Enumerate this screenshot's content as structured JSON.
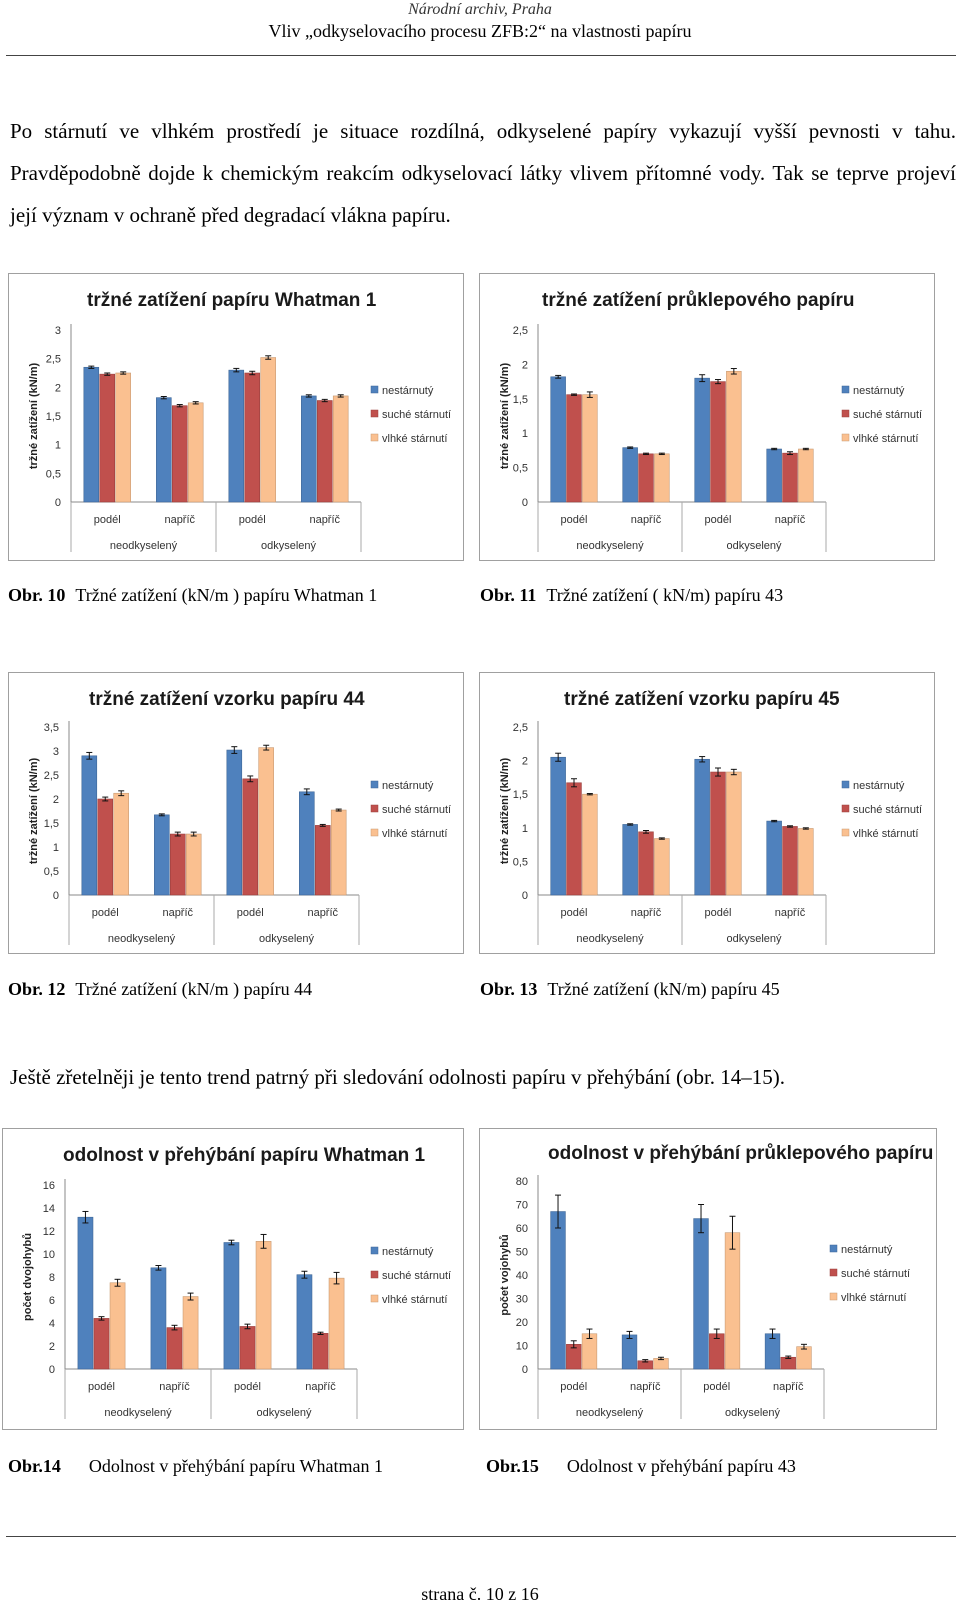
{
  "header": {
    "line1": "Národní archiv, Praha",
    "line2": "Vliv „odkyselovacího procesu ZFB:2“ na vlastnosti papíru"
  },
  "paragraph1": "Po stárnutí ve vlhkém prostředí je situace rozdílná, odkyselené papíry vykazují vyšší pevnosti v tahu. Pravděpodobně dojde k chemickým reakcím odkyselovací látky vlivem přítomné vody. Tak se teprve projeví její význam v ochraně před degradací vlákna papíru.",
  "paragraph2": "Ještě zřetelněji je tento trend patrný při sledování odolnosti papíru v přehýbání (obr. 14–15).",
  "captions": [
    {
      "num": "Obr. 10",
      "text": "Tržné zatížení (kN/m ) papíru Whatman 1"
    },
    {
      "num": "Obr. 11",
      "text": "Tržné zatížení ( kN/m) papíru 43"
    },
    {
      "num": "Obr. 12",
      "text": "Tržné zatížení (kN/m ) papíru 44"
    },
    {
      "num": "Obr. 13",
      "text": "Tržné zatížení (kN/m) papíru 45"
    },
    {
      "num": "Obr.14",
      "text": "Odolnost v přehýbání papíru Whatman 1"
    },
    {
      "num": "Obr.15",
      "text": "Odolnost v přehýbání papíru 43"
    }
  ],
  "footer": "strana č. 10 z 16",
  "colors": {
    "nestarnuty": "#4f81bd",
    "suche": "#c0504d",
    "vlhke": "#fac090"
  },
  "chart_data": [
    {
      "type": "bar",
      "title": "tržné zatížení papíru Whatman 1",
      "ylabel": "tržné zatížení (kN/m)",
      "ylim": [
        0,
        3
      ],
      "yticks": [
        "0",
        "0,5",
        "1",
        "1,5",
        "2",
        "2,5",
        "3"
      ],
      "ystep": 0.5,
      "categories": [
        "podél",
        "napříč",
        "podél",
        "napříč"
      ],
      "groups": [
        "neodkyselený",
        "odkyselený"
      ],
      "series": [
        {
          "name": "nestárnutý",
          "values": [
            2.35,
            1.82,
            2.3,
            1.85
          ],
          "errors": [
            0.02,
            0.02,
            0.03,
            0.02
          ]
        },
        {
          "name": "suché stárnutí",
          "values": [
            2.23,
            1.68,
            2.25,
            1.77
          ],
          "errors": [
            0.02,
            0.02,
            0.03,
            0.02
          ]
        },
        {
          "name": "vlhké stárnutí",
          "values": [
            2.25,
            1.73,
            2.52,
            1.85
          ],
          "errors": [
            0.02,
            0.02,
            0.03,
            0.02
          ]
        }
      ],
      "legend": "right"
    },
    {
      "type": "bar",
      "title": "tržné zatížení průklepového papíru",
      "ylabel": "tržné zatížení (kN/m)",
      "ylim": [
        0,
        2.5
      ],
      "yticks": [
        "0",
        "0,5",
        "1",
        "1,5",
        "2",
        "2,5"
      ],
      "ystep": 0.5,
      "categories": [
        "podél",
        "napříč",
        "podél",
        "napříč"
      ],
      "groups": [
        "neodkyselený",
        "odkyselený"
      ],
      "series": [
        {
          "name": "nestárnutý",
          "values": [
            1.82,
            0.79,
            1.8,
            0.77
          ],
          "errors": [
            0.02,
            0.01,
            0.05,
            0.01
          ]
        },
        {
          "name": "suché stárnutí",
          "values": [
            1.56,
            0.7,
            1.75,
            0.71
          ],
          "errors": [
            0.01,
            0.01,
            0.03,
            0.02
          ]
        },
        {
          "name": "vlhké stárnutí",
          "values": [
            1.56,
            0.7,
            1.9,
            0.77
          ],
          "errors": [
            0.04,
            0.01,
            0.04,
            0.01
          ]
        }
      ],
      "legend": "right"
    },
    {
      "type": "bar",
      "title": "tržné zatížení vzorku papíru  44",
      "ylabel": "tržné zatížení (kN/m)",
      "ylim": [
        0,
        3.5
      ],
      "yticks": [
        "0",
        "0,5",
        "1",
        "1,5",
        "2",
        "2,5",
        "3",
        "3,5"
      ],
      "ystep": 0.5,
      "categories": [
        "podél",
        "napříč",
        "podél",
        "napříč"
      ],
      "groups": [
        "neodkyselený",
        "odkyselený"
      ],
      "series": [
        {
          "name": "nestárnutý",
          "values": [
            2.9,
            1.67,
            3.02,
            2.15
          ],
          "errors": [
            0.07,
            0.02,
            0.07,
            0.06
          ]
        },
        {
          "name": "suché stárnutí",
          "values": [
            2.0,
            1.27,
            2.42,
            1.45
          ],
          "errors": [
            0.04,
            0.04,
            0.06,
            0.02
          ]
        },
        {
          "name": "vlhké stárnutí",
          "values": [
            2.12,
            1.27,
            3.07,
            1.77
          ],
          "errors": [
            0.05,
            0.04,
            0.05,
            0.02
          ]
        }
      ],
      "legend": "right"
    },
    {
      "type": "bar",
      "title": "tržné zatížení vzorku papíru 45",
      "ylabel": "tržné zatížení (kN/m)",
      "ylim": [
        0,
        2.5
      ],
      "yticks": [
        "0",
        "0,5",
        "1",
        "1,5",
        "2",
        "2,5"
      ],
      "ystep": 0.5,
      "categories": [
        "podél",
        "napříč",
        "podél",
        "napříč"
      ],
      "groups": [
        "neodkyselený",
        "odkyselený"
      ],
      "series": [
        {
          "name": "nestárnutý",
          "values": [
            2.05,
            1.05,
            2.02,
            1.1
          ],
          "errors": [
            0.06,
            0.01,
            0.04,
            0.01
          ]
        },
        {
          "name": "suché stárnutí",
          "values": [
            1.67,
            0.94,
            1.83,
            1.02
          ],
          "errors": [
            0.06,
            0.02,
            0.06,
            0.01
          ]
        },
        {
          "name": "vlhké stárnutí",
          "values": [
            1.5,
            0.84,
            1.83,
            0.99
          ],
          "errors": [
            0.01,
            0.01,
            0.04,
            0.01
          ]
        }
      ],
      "legend": "right"
    },
    {
      "type": "bar",
      "title": "odolnost v přehýbání papíru Whatman 1",
      "ylabel": "počet dvojohybů",
      "ylim": [
        0,
        16
      ],
      "yticks": [
        "0",
        "2",
        "4",
        "6",
        "8",
        "10",
        "12",
        "14",
        "16"
      ],
      "ystep": 2,
      "categories": [
        "podél",
        "napříč",
        "podél",
        "napříč"
      ],
      "groups": [
        "neodkyselený",
        "odkyselený"
      ],
      "series": [
        {
          "name": "nestárnutý",
          "values": [
            13.2,
            8.8,
            11,
            8.2
          ],
          "errors": [
            0.5,
            0.2,
            0.2,
            0.3
          ]
        },
        {
          "name": "suché stárnutí",
          "values": [
            4.4,
            3.6,
            3.7,
            3.1
          ],
          "errors": [
            0.15,
            0.2,
            0.2,
            0.1
          ]
        },
        {
          "name": "vlhké stárnutí",
          "values": [
            7.5,
            6.3,
            11.1,
            7.9
          ],
          "errors": [
            0.3,
            0.3,
            0.6,
            0.5
          ]
        }
      ],
      "legend": "right"
    },
    {
      "type": "bar",
      "title": "odolnost v přehýbání průklepového papíru",
      "ylabel": "počet vojohybů",
      "ylim": [
        0,
        80
      ],
      "yticks": [
        "0",
        "10",
        "20",
        "30",
        "40",
        "50",
        "60",
        "70",
        "80"
      ],
      "ystep": 10,
      "categories": [
        "podél",
        "napříč",
        "podél",
        "napříč"
      ],
      "groups": [
        "neodkyselený",
        "odkyselený"
      ],
      "series": [
        {
          "name": "nestárnutý",
          "values": [
            67,
            14.5,
            64,
            15
          ],
          "errors": [
            7,
            1.5,
            6,
            2
          ]
        },
        {
          "name": "suché stárnutí",
          "values": [
            10.5,
            3.5,
            15,
            5
          ],
          "errors": [
            1.5,
            0.5,
            2,
            0.5
          ]
        },
        {
          "name": "vlhké stárnutí",
          "values": [
            15,
            4.5,
            58,
            9.5
          ],
          "errors": [
            2,
            0.5,
            7,
            1
          ]
        }
      ],
      "legend": "right"
    }
  ]
}
